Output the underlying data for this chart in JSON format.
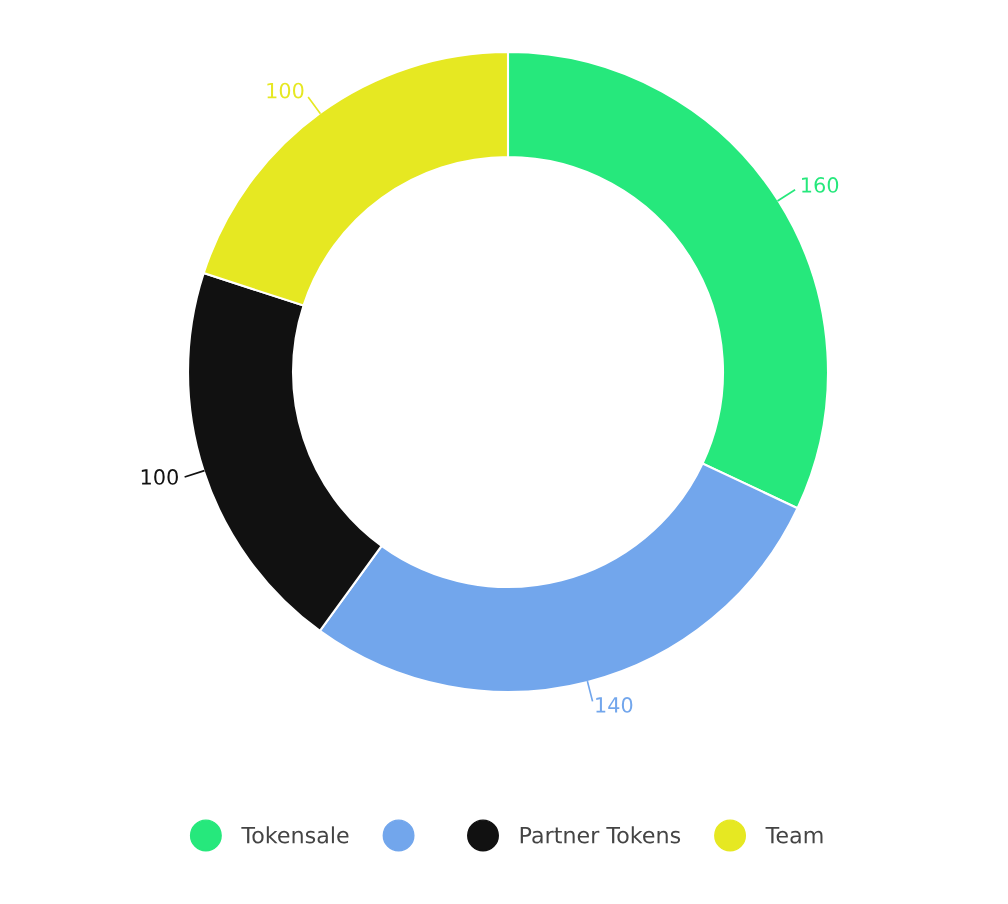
{
  "chart_data": {
    "type": "donut",
    "categories": [
      "Tokensale",
      null,
      "Partner Tokens",
      "Team"
    ],
    "values": [
      160,
      140,
      100,
      100
    ],
    "colors": [
      "#26e87c",
      "#72a6ec",
      "#111111",
      "#e6e822"
    ],
    "data_labels": true,
    "legend": "bottom"
  }
}
